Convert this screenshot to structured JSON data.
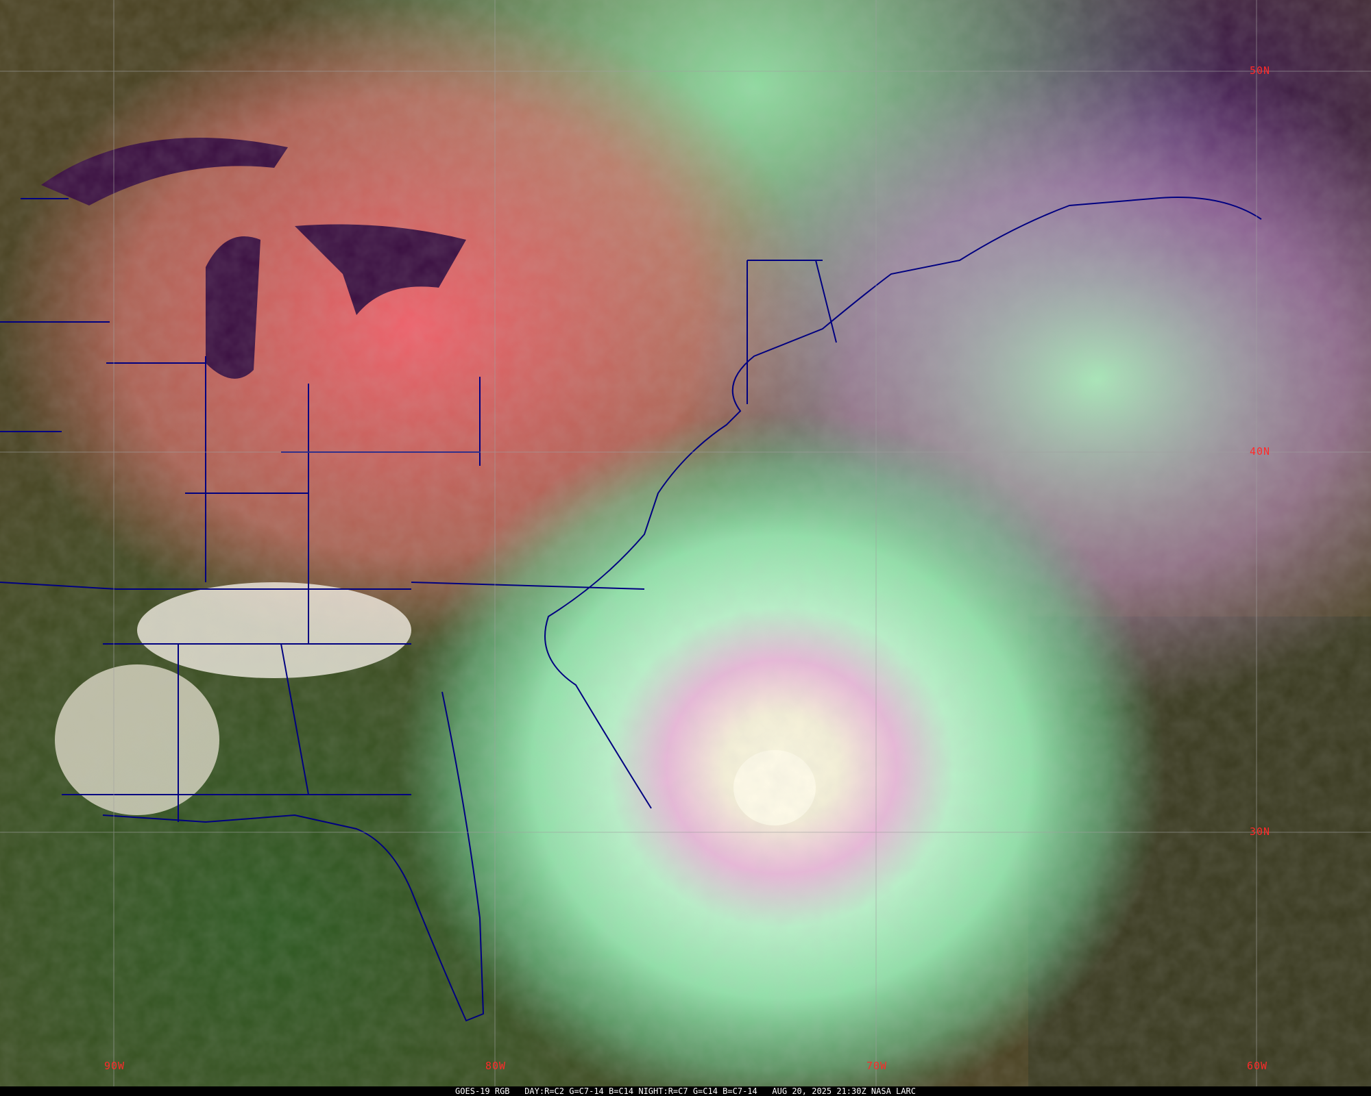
{
  "caption": "GOES-19 RGB   DAY:R=C2 G=C7-14 B=C14 NIGHT:R=C7 G=C14 B=C7-14   AUG 20, 2025 21:30Z NASA LARC",
  "latitude_labels": [
    "50N",
    "40N",
    "30N"
  ],
  "longitude_labels": [
    "90W",
    "80W",
    "70W",
    "60W"
  ],
  "colors": {
    "boundaries": "#000080",
    "graticule": "#a0a0a0",
    "grid_labels": "#ff2a2a",
    "caption_text": "#ffffff",
    "caption_background": "#000000"
  }
}
